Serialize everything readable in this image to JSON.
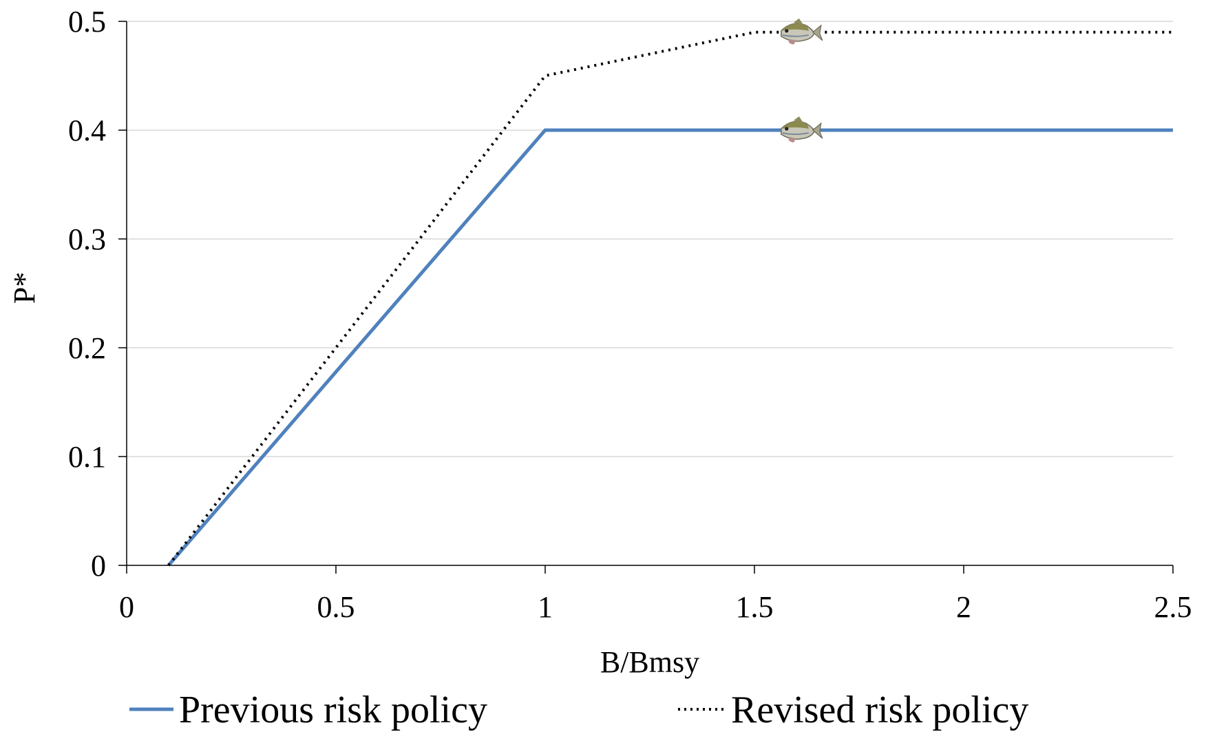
{
  "chart_data": {
    "type": "line",
    "title": "",
    "xlabel": "B/Bmsy",
    "ylabel": "P*",
    "xlim": [
      0,
      2.5
    ],
    "ylim": [
      0,
      0.5
    ],
    "x_ticks": [
      "0",
      "0.5",
      "1",
      "1.5",
      "2",
      "2.5"
    ],
    "y_ticks": [
      "0",
      "0.1",
      "0.2",
      "0.3",
      "0.4",
      "0.5"
    ],
    "grid": "horizontal",
    "legend_position": "bottom",
    "series": [
      {
        "name": "Previous risk policy",
        "style": "solid",
        "color": "#4F81BD",
        "points": [
          [
            0.1,
            0
          ],
          [
            1.0,
            0.4
          ],
          [
            2.5,
            0.4
          ]
        ]
      },
      {
        "name": "Revised risk policy",
        "style": "dotted",
        "color": "#000000",
        "points": [
          [
            0.1,
            0
          ],
          [
            1.0,
            0.45
          ],
          [
            1.5,
            0.49
          ],
          [
            2.5,
            0.49
          ]
        ]
      }
    ],
    "markers": [
      {
        "icon": "fish-icon",
        "x": 1.6,
        "y": 0.49,
        "series": "Revised risk policy"
      },
      {
        "icon": "fish-icon",
        "x": 1.6,
        "y": 0.4,
        "series": "Previous risk policy"
      }
    ]
  }
}
